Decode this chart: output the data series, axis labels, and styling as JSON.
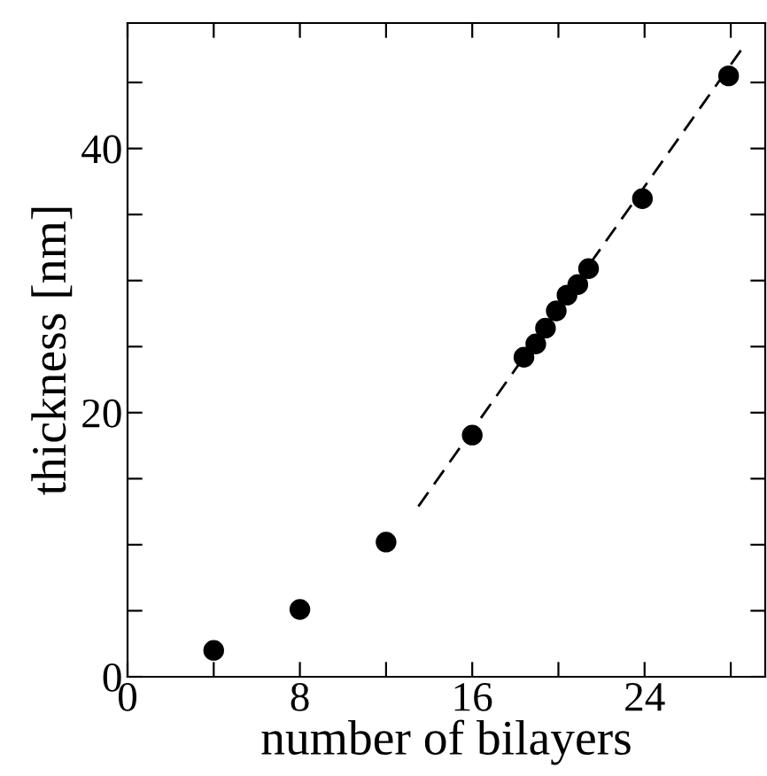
{
  "chart_data": {
    "type": "scatter",
    "xlabel": "number of bilayers",
    "ylabel": "thickness [nm]",
    "xlim": [
      0,
      29.6
    ],
    "ylim": [
      0,
      49.5
    ],
    "xticks": [
      0,
      {
        "value": 4,
        "label": null
      },
      8,
      {
        "value": 12,
        "label": null
      },
      16,
      {
        "value": 20,
        "label": null
      },
      24,
      {
        "value": 28,
        "label": null
      }
    ],
    "yticks": [
      0,
      {
        "value": 5,
        "label": null
      },
      {
        "value": 10,
        "label": null
      },
      {
        "value": 15,
        "label": null
      },
      20,
      {
        "value": 25,
        "label": null
      },
      {
        "value": 30,
        "label": null
      },
      {
        "value": 35,
        "label": null
      },
      40,
      {
        "value": 45,
        "label": null
      }
    ],
    "grid": false,
    "series": [
      {
        "marker": "circle",
        "color": "#000000",
        "x": [
          4,
          8,
          12,
          16,
          18.4,
          18.95,
          19.4,
          19.9,
          20.4,
          20.9,
          21.4,
          23.9,
          27.9
        ],
        "values": [
          2.0,
          5.1,
          10.2,
          18.3,
          24.2,
          25.2,
          26.4,
          27.7,
          28.9,
          29.7,
          30.9,
          36.2,
          45.5
        ]
      },
      {
        "type": "line",
        "color": "#000000",
        "line_style": "dashed",
        "marker": "none",
        "x": [
          13.5,
          28.5
        ],
        "values": [
          12.9,
          47.5
        ]
      }
    ]
  }
}
